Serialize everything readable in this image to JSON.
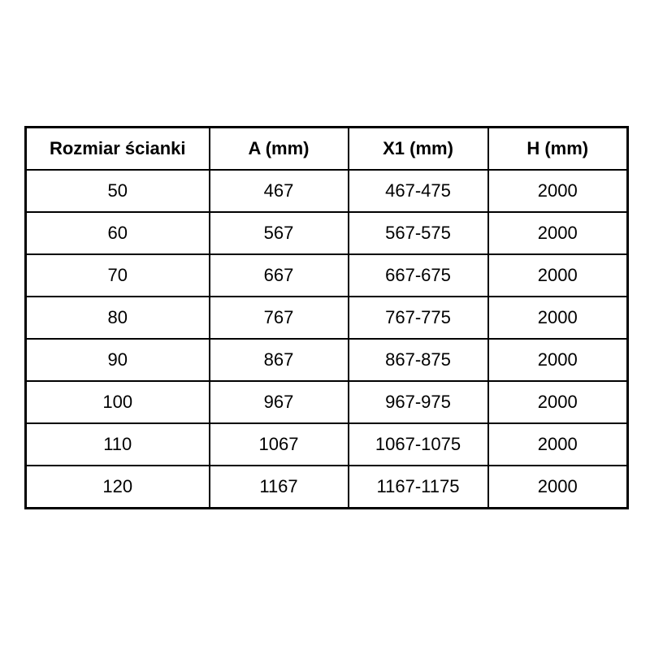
{
  "table": {
    "headers": [
      "Rozmiar ścianki",
      "A (mm)",
      "X1 (mm)",
      "H (mm)"
    ],
    "rows": [
      [
        "50",
        "467",
        "467-475",
        "2000"
      ],
      [
        "60",
        "567",
        "567-575",
        "2000"
      ],
      [
        "70",
        "667",
        "667-675",
        "2000"
      ],
      [
        "80",
        "767",
        "767-775",
        "2000"
      ],
      [
        "90",
        "867",
        "867-875",
        "2000"
      ],
      [
        "100",
        "967",
        "967-975",
        "2000"
      ],
      [
        "110",
        "1067",
        "1067-1075",
        "2000"
      ],
      [
        "120",
        "1167",
        "1167-1175",
        "2000"
      ]
    ],
    "colors": {
      "border": "#000000",
      "text": "#000000",
      "background": "#ffffff"
    }
  }
}
